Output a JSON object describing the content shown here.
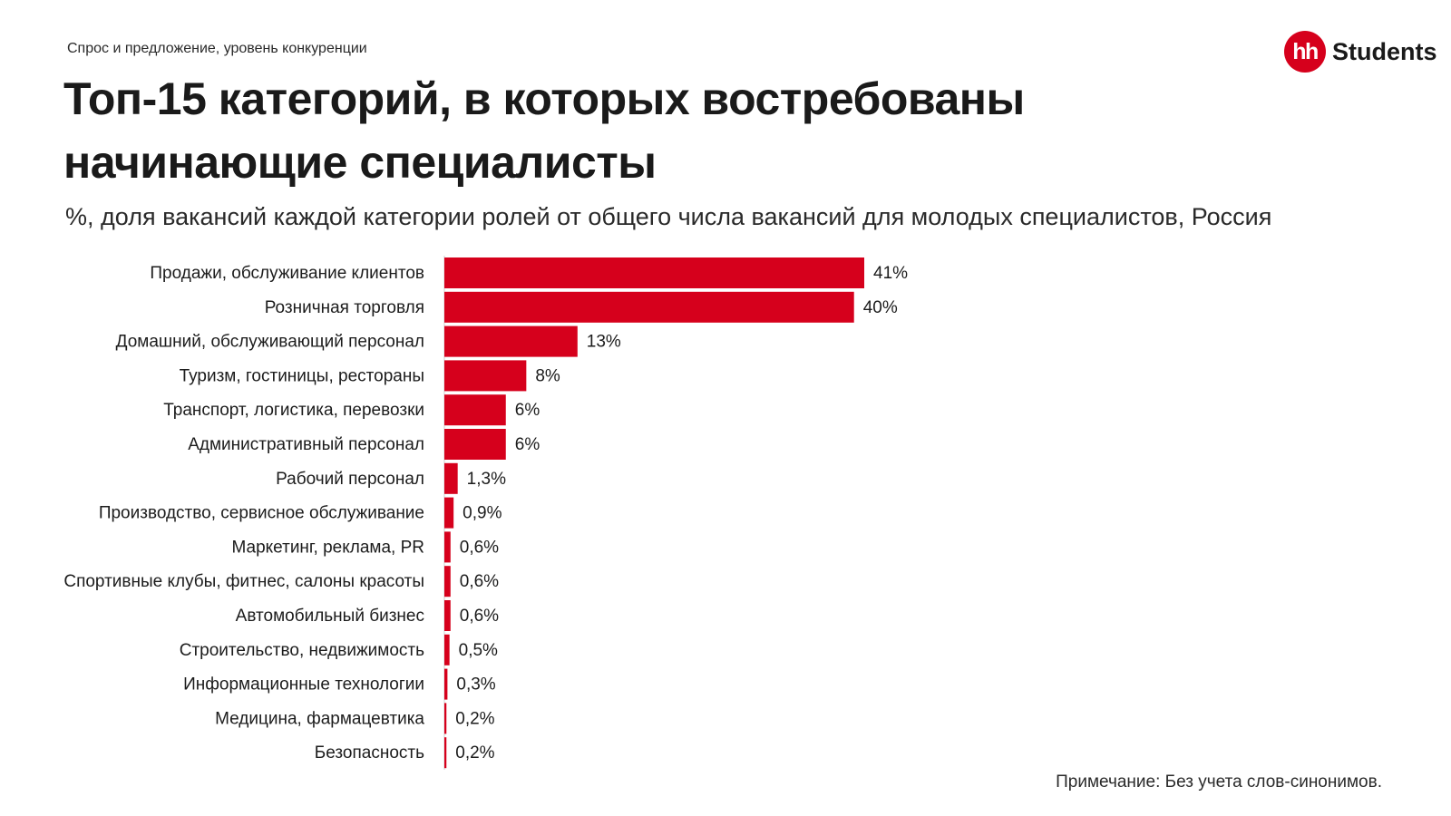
{
  "header": {
    "kicker": "Спрос и предложение, уровень конкуренции",
    "title": "Топ-15 категорий, в которых востребованы начинающие специалисты",
    "subtitle": "%, доля вакансий каждой категории ролей от общего числа вакансий для молодых специалистов, Россия"
  },
  "logo": {
    "mark": "hh",
    "word": "Students",
    "color": "#d6001c"
  },
  "chart_data": {
    "type": "bar",
    "orientation": "horizontal",
    "title": "Топ-15 категорий, в которых востребованы начинающие специалисты",
    "subtitle": "%, доля вакансий каждой категории ролей от общего числа вакансий для молодых специалистов, Россия",
    "categories": [
      "Продажи, обслуживание клиентов",
      "Розничная торговля",
      "Домашний, обслуживающий персонал",
      "Туризм, гостиницы, рестораны",
      "Транспорт, логистика, перевозки",
      "Административный персонал",
      "Рабочий персонал",
      "Производство, сервисное обслуживание",
      "Маркетинг, реклама, PR",
      "Спортивные клубы, фитнес, салоны красоты",
      "Автомобильный бизнес",
      "Строительство, недвижимость",
      "Информационные технологии",
      "Медицина, фармацевтика",
      "Безопасность"
    ],
    "values": [
      41,
      40,
      13,
      8,
      6,
      6,
      1.3,
      0.9,
      0.6,
      0.6,
      0.6,
      0.5,
      0.3,
      0.2,
      0.2
    ],
    "value_labels": [
      "41%",
      "40%",
      "13%",
      "8%",
      "6%",
      "6%",
      "1,3%",
      "0,9%",
      "0,6%",
      "0,6%",
      "0,6%",
      "0,5%",
      "0,3%",
      "0,2%",
      "0,2%"
    ],
    "xlim": [
      0,
      42
    ],
    "bar_color": "#d6001c",
    "grid": false,
    "legend": "none"
  },
  "footer": {
    "note": "Примечание: Без учета слов-синонимов."
  }
}
